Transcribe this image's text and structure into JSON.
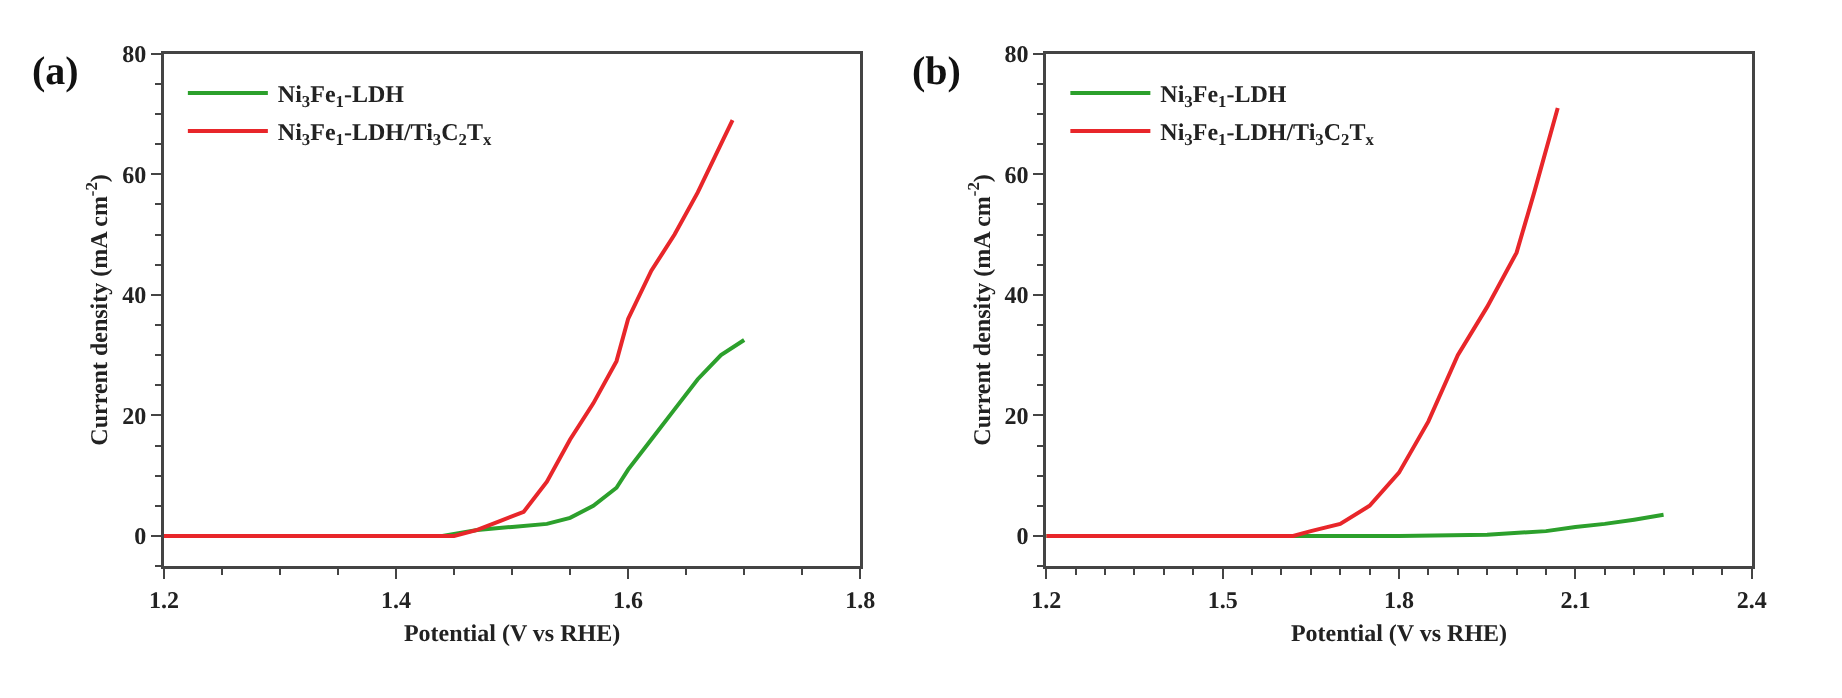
{
  "chart_data": [
    {
      "type": "line",
      "annotations": [
        "(a)"
      ],
      "xlabel": "Potential (V vs RHE)",
      "ylabel": "Current density (mA cm$^{-2}$)",
      "xlim": [
        1.2,
        1.8
      ],
      "xticks": [
        1.2,
        1.4,
        1.6,
        1.8
      ],
      "ylim": [
        -5,
        80
      ],
      "yticks": [
        0,
        20,
        40,
        60,
        80
      ],
      "grid": false,
      "legend": "top left",
      "series": [
        {
          "name": "Ni$_{3}$Fe$_{1}$-LDH",
          "color": "#2ca02c",
          "x": [
            1.2,
            1.3,
            1.44,
            1.47,
            1.5,
            1.53,
            1.55,
            1.57,
            1.59,
            1.6,
            1.62,
            1.64,
            1.66,
            1.68,
            1.7
          ],
          "values": [
            0,
            0,
            0,
            1,
            1.5,
            2,
            3,
            5,
            8,
            11,
            16,
            21,
            26,
            30,
            32.5
          ]
        },
        {
          "name": "Ni$_{3}$Fe$_{1}$-LDH/Ti$_{3}$C$_{2}$T$_{x}$",
          "color": "#e8262a",
          "x": [
            1.2,
            1.3,
            1.45,
            1.47,
            1.49,
            1.51,
            1.53,
            1.55,
            1.57,
            1.59,
            1.6,
            1.62,
            1.64,
            1.66,
            1.68,
            1.69
          ],
          "values": [
            0,
            0,
            0,
            1,
            2.5,
            4,
            9,
            16,
            22,
            29,
            36,
            44,
            50,
            57,
            65,
            69
          ]
        }
      ]
    },
    {
      "type": "line",
      "annotations": [
        "(b)"
      ],
      "xlabel": "Potential (V vs RHE)",
      "ylabel": "Current density (mA cm$^{-2}$)",
      "xlim": [
        1.2,
        2.4
      ],
      "xticks": [
        1.2,
        1.5,
        1.8,
        2.1,
        2.4
      ],
      "ylim": [
        -5,
        80
      ],
      "yticks": [
        0,
        20,
        40,
        60,
        80
      ],
      "grid": false,
      "legend": "top left",
      "series": [
        {
          "name": "Ni$_{3}$Fe$_{1}$-LDH",
          "color": "#2ca02c",
          "x": [
            1.2,
            1.6,
            1.8,
            1.95,
            2.05,
            2.1,
            2.15,
            2.2,
            2.25
          ],
          "values": [
            0,
            0,
            0,
            0.2,
            0.8,
            1.5,
            2,
            2.7,
            3.5
          ]
        },
        {
          "name": "Ni$_{3}$Fe$_{1}$-LDH/Ti$_{3}$C$_{2}$T$_{x}$",
          "color": "#e8262a",
          "x": [
            1.2,
            1.62,
            1.65,
            1.7,
            1.75,
            1.8,
            1.85,
            1.9,
            1.95,
            2.0,
            2.03,
            2.07
          ],
          "values": [
            0,
            0,
            0.8,
            2,
            5,
            10.5,
            19,
            30,
            38,
            47,
            57,
            71
          ]
        }
      ]
    }
  ]
}
